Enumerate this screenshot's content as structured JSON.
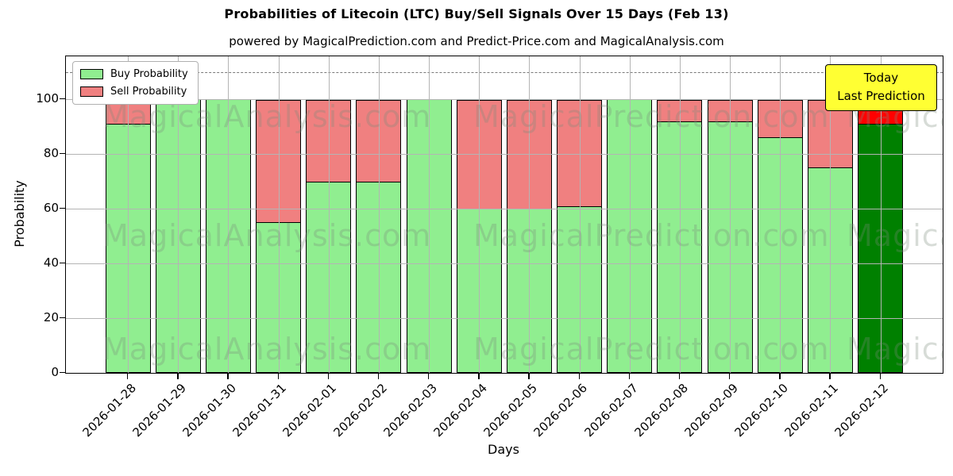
{
  "chart_data": {
    "type": "bar",
    "stacked": true,
    "title": "Probabilities of Litecoin (LTC) Buy/Sell Signals Over 15 Days (Feb 13)",
    "subtitle": "powered by MagicalPrediction.com and Predict-Price.com and MagicalAnalysis.com",
    "xlabel": "Days",
    "ylabel": "Probability",
    "categories": [
      "2026-01-28",
      "2026-01-29",
      "2026-01-30",
      "2026-01-31",
      "2026-02-01",
      "2026-02-02",
      "2026-02-03",
      "2026-02-04",
      "2026-02-05",
      "2026-02-06",
      "2026-02-07",
      "2026-02-08",
      "2026-02-09",
      "2026-02-10",
      "2026-02-11",
      "2026-02-12"
    ],
    "series": [
      {
        "name": "Buy Probability",
        "color": "#90EE90",
        "values": [
          91,
          100,
          100,
          55,
          70,
          70,
          100,
          60,
          60,
          61,
          100,
          92,
          92,
          86,
          75,
          91
        ]
      },
      {
        "name": "Sell Probability",
        "color": "#F08080",
        "values": [
          9,
          0,
          0,
          45,
          30,
          30,
          0,
          40,
          40,
          39,
          0,
          8,
          8,
          14,
          25,
          9
        ]
      }
    ],
    "today_index": 15,
    "today_colors": {
      "buy": "#008000",
      "sell": "#FF0000"
    },
    "yticks": [
      0,
      20,
      40,
      60,
      80,
      100
    ],
    "ylim": [
      0,
      115.7
    ],
    "dashed_line_y": 110,
    "grid": true,
    "legend_position": "upper left",
    "annotation": {
      "line1": "Today",
      "line2": "Last Prediction",
      "bg": "#FFFF33"
    },
    "watermark": {
      "texts": [
        "MagicalAnalysis.com",
        "MagicalPrediction.com"
      ],
      "color": "rgba(123,140,123,0.30)"
    },
    "style": {
      "grid_color": "#b4b4b4",
      "dashed_color": "#7a7a7a",
      "bar_edge": "#000000"
    }
  }
}
